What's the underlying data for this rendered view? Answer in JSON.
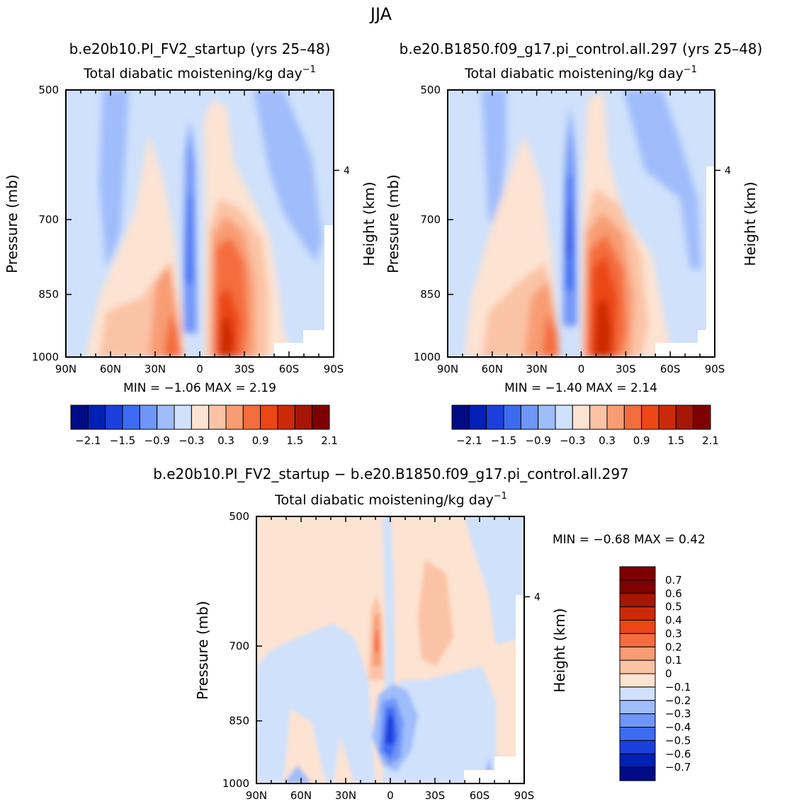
{
  "figure_title": "JJA",
  "panels": {
    "left": {
      "title": "b.e20b10.PI_FV2_startup (yrs 25–48)",
      "subtitle": "Total diabatic moistening/kg day",
      "subtitle_exp": "−1",
      "ylabel": "Pressure (mb)",
      "y2label": "Height (km)",
      "minmax": "MIN =   −1.06   MAX =    2.19"
    },
    "right": {
      "title": "b.e20.B1850.f09_g17.pi_control.all.297 (yrs 25–48)",
      "subtitle": "Total diabatic moistening/kg day",
      "subtitle_exp": "−1",
      "ylabel": "Pressure (mb)",
      "y2label": "Height (km)",
      "minmax": "MIN =   −1.40   MAX =    2.14"
    },
    "diff": {
      "title": "b.e20b10.PI_FV2_startup − b.e20.B1850.f09_g17.pi_control.all.297",
      "subtitle": "Total diabatic moistening/kg day",
      "subtitle_exp": "−1",
      "ylabel": "Pressure (mb)",
      "y2label": "Height (km)",
      "minmax": "MIN =   −0.68   MAX =    0.42"
    }
  },
  "axes": {
    "x_ticks": [
      "90N",
      "60N",
      "30N",
      "0",
      "30S",
      "60S",
      "90S"
    ],
    "y_ticks": [
      "500",
      "700",
      "850",
      "1000"
    ],
    "y2_ticks": [
      "4"
    ]
  },
  "colorbar_main": {
    "colors": [
      "#000c86",
      "#0021b6",
      "#1a3fdb",
      "#3d6cf2",
      "#6f95f7",
      "#9fbcfb",
      "#cfe1fb",
      "#fde3d2",
      "#fbc3a5",
      "#f89c73",
      "#f46d3e",
      "#ec4615",
      "#cc2a06",
      "#a51704",
      "#7f0000"
    ],
    "labels": [
      "−2.1",
      "−1.5",
      "−0.9",
      "−0.3",
      "0.3",
      "0.9",
      "1.5",
      "2.1"
    ]
  },
  "colorbar_diff": {
    "colors": [
      "#7f0000",
      "#a51704",
      "#cc2a06",
      "#ec4615",
      "#f46d3e",
      "#f89c73",
      "#fbc3a5",
      "#fde3d2",
      "#cfe1fb",
      "#9fbcfb",
      "#6f95f7",
      "#3d6cf2",
      "#1a3fdb",
      "#0021b6",
      "#000c86"
    ],
    "labels": [
      "0.7",
      "0.6",
      "0.5",
      "0.4",
      "0.3",
      "0.2",
      "0.1",
      "0",
      "−0.1",
      "−0.2",
      "−0.3",
      "−0.4",
      "−0.5",
      "−0.6",
      "−0.7"
    ]
  },
  "chart_data": [
    {
      "type": "heatmap",
      "title": "b.e20b10.PI_FV2_startup (yrs 25–48)",
      "subtitle": "Total diabatic moistening/kg day−1",
      "xlabel": "",
      "ylabel": "Pressure (mb)",
      "y2label": "Height (km)",
      "x_range": [
        "90N",
        "90S"
      ],
      "y_range": [
        500,
        1000
      ],
      "min": -1.06,
      "max": 2.19,
      "levels": [
        -2.1,
        -1.8,
        -1.5,
        -1.2,
        -0.9,
        -0.6,
        -0.3,
        0,
        0.3,
        0.6,
        0.9,
        1.2,
        1.5,
        1.8,
        2.1
      ]
    },
    {
      "type": "heatmap",
      "title": "b.e20.B1850.f09_g17.pi_control.all.297 (yrs 25–48)",
      "subtitle": "Total diabatic moistening/kg day−1",
      "xlabel": "",
      "ylabel": "Pressure (mb)",
      "y2label": "Height (km)",
      "x_range": [
        "90N",
        "90S"
      ],
      "y_range": [
        500,
        1000
      ],
      "min": -1.4,
      "max": 2.14,
      "levels": [
        -2.1,
        -1.8,
        -1.5,
        -1.2,
        -0.9,
        -0.6,
        -0.3,
        0,
        0.3,
        0.6,
        0.9,
        1.2,
        1.5,
        1.8,
        2.1
      ]
    },
    {
      "type": "heatmap",
      "title": "b.e20b10.PI_FV2_startup − b.e20.B1850.f09_g17.pi_control.all.297",
      "subtitle": "Total diabatic moistening/kg day−1",
      "xlabel": "",
      "ylabel": "Pressure (mb)",
      "y2label": "Height (km)",
      "x_range": [
        "90N",
        "90S"
      ],
      "y_range": [
        500,
        1000
      ],
      "min": -0.68,
      "max": 0.42,
      "levels": [
        -0.7,
        -0.6,
        -0.5,
        -0.4,
        -0.3,
        -0.2,
        -0.1,
        0,
        0.1,
        0.2,
        0.3,
        0.4,
        0.5,
        0.6,
        0.7
      ]
    }
  ]
}
